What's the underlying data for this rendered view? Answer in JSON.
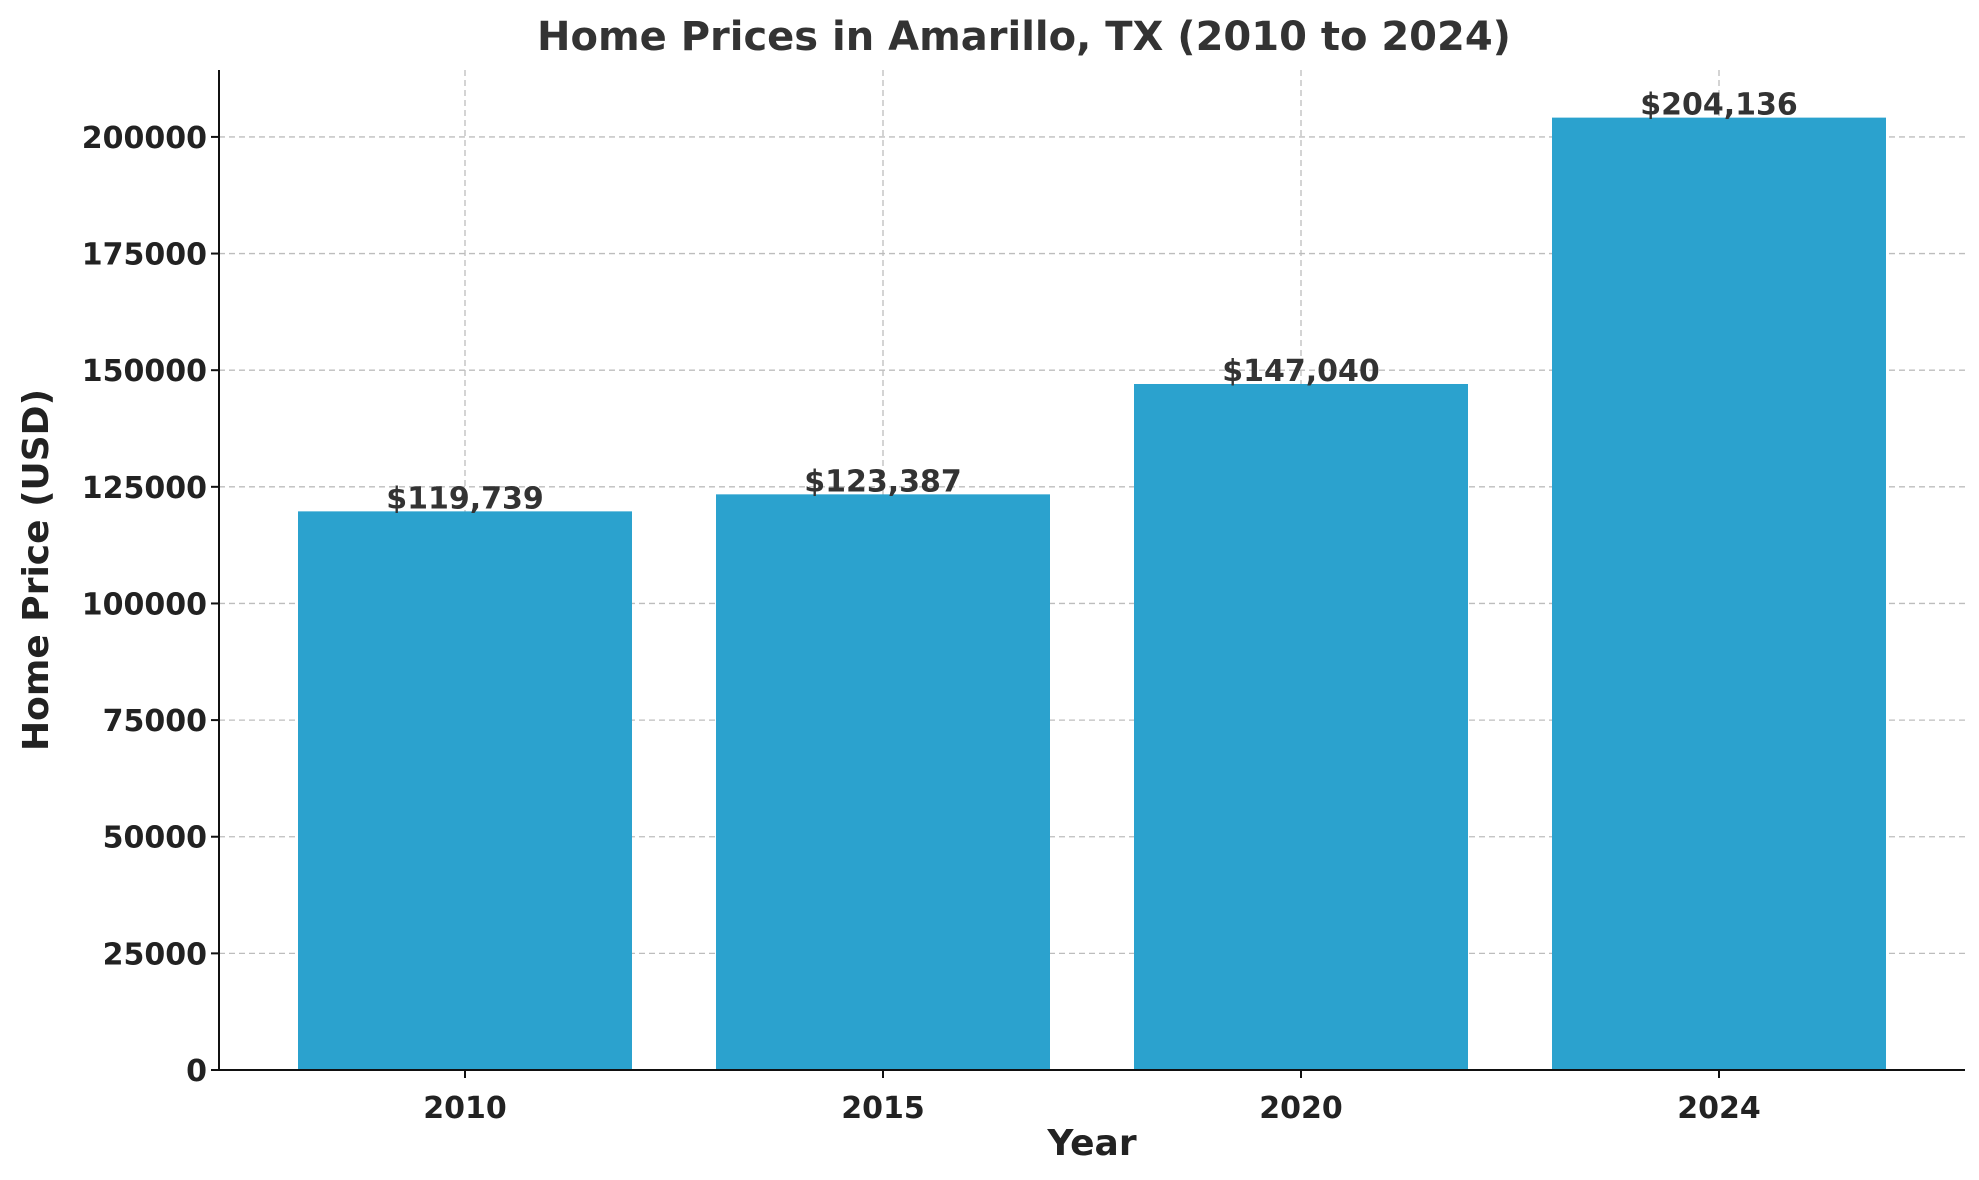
{
  "chart_data": {
    "type": "bar",
    "title": "Home Prices in Amarillo, TX (2010 to 2024)",
    "xlabel": "Year",
    "ylabel": "Home Price (USD)",
    "categories": [
      "2010",
      "2015",
      "2020",
      "2024"
    ],
    "values": [
      119739,
      123387,
      147040,
      204136
    ],
    "data_labels": [
      "$119,739",
      "$123,387",
      "$147,040",
      "$204,136"
    ],
    "ylim": [
      0,
      214343
    ],
    "yticks": [
      0,
      25000,
      50000,
      75000,
      100000,
      125000,
      150000,
      175000,
      200000
    ],
    "ytick_labels": [
      "0",
      "25000",
      "50000",
      "75000",
      "100000",
      "125000",
      "150000",
      "175000",
      "200000"
    ],
    "grid": true,
    "bar_color": "#2ba2ce",
    "text_color": "#333333",
    "grid_color": "#bdbdbd"
  }
}
